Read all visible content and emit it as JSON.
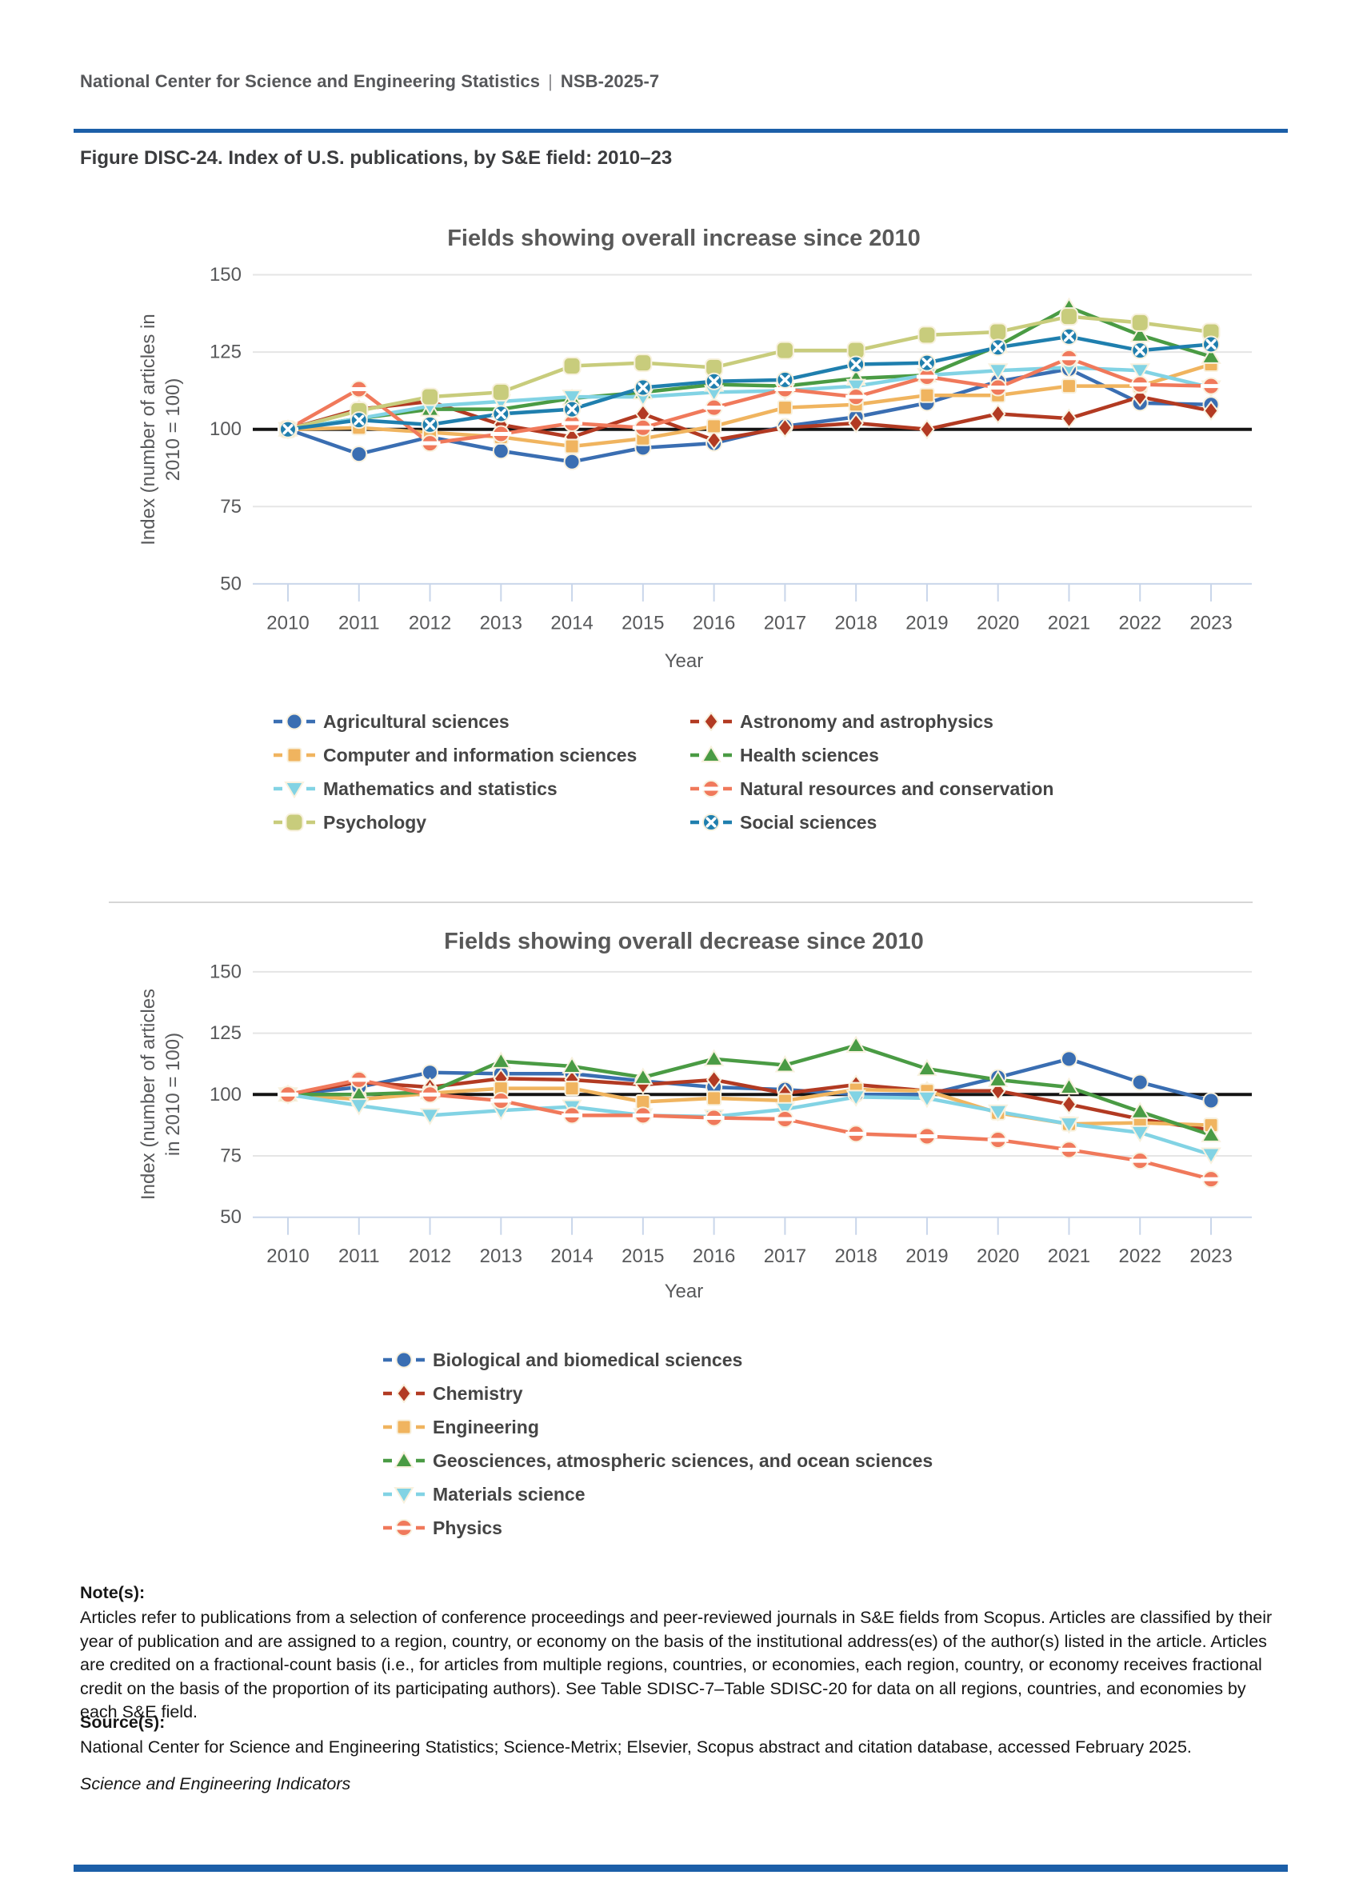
{
  "header": {
    "org": "National Center for Science and Engineering Statistics",
    "divider": "|",
    "report_id": "NSB-2025-7"
  },
  "figure_title": "Figure DISC-24. Index of U.S. publications, by S&E field: 2010–23",
  "colors": {
    "rule_blue": "#1C5FA8",
    "baseline_black": "#141414",
    "gridline_gray": "#E5E5E5",
    "axis_blue_gray": "#C9D6EA",
    "tick_text": "#58595B",
    "title_text": "#595959",
    "legend_text": "#454545"
  },
  "chart_data": [
    {
      "type": "line",
      "title": "Fields showing overall increase since 2010",
      "ylabel_line1": "Index (number of articles in",
      "ylabel_line2": "2010 = 100)",
      "xlabel": "Year",
      "x": [
        2010,
        2011,
        2012,
        2013,
        2014,
        2015,
        2016,
        2017,
        2018,
        2019,
        2020,
        2021,
        2022,
        2023
      ],
      "ylim": [
        50,
        150
      ],
      "yticks": [
        50,
        75,
        100,
        125,
        150
      ],
      "baseline": 100,
      "grid": true,
      "legend_position": "bottom",
      "series": [
        {
          "name": "Agricultural sciences",
          "marker": "circle",
          "color": "#3A6EB2",
          "values": [
            100,
            92,
            97.5,
            93,
            89.5,
            94,
            95.5,
            101,
            104,
            108.5,
            115.5,
            119.5,
            108.5,
            108
          ]
        },
        {
          "name": "Astronomy and astrophysics",
          "marker": "diamond",
          "color": "#B23A22",
          "values": [
            100,
            106.5,
            109,
            101.5,
            97.5,
            105,
            96.5,
            100.5,
            102,
            100,
            105,
            103.5,
            110.5,
            106
          ]
        },
        {
          "name": "Computer and information sciences",
          "marker": "square",
          "color": "#F0B45F",
          "values": [
            100,
            100.5,
            99,
            97.5,
            94.5,
            97,
            101,
            107,
            108,
            111,
            111,
            114,
            114,
            121
          ]
        },
        {
          "name": "Health sciences",
          "marker": "triangle-up",
          "color": "#4A9B44",
          "values": [
            100,
            103.5,
            106.5,
            106.5,
            110,
            112,
            114.5,
            114,
            116.5,
            117.5,
            127,
            139.5,
            130.5,
            123.5
          ]
        },
        {
          "name": "Mathematics and statistics",
          "marker": "triangle-down",
          "color": "#82D3E4",
          "values": [
            100,
            103.5,
            107.5,
            109,
            110.5,
            110.5,
            112,
            112.5,
            114,
            117.5,
            119,
            120,
            119,
            113.5
          ]
        },
        {
          "name": "Natural resources and conservation",
          "marker": "circle-hbar",
          "color": "#F0795B",
          "values": [
            100,
            113,
            95.5,
            98.5,
            102,
            100.5,
            107,
            113,
            110.5,
            117,
            113.5,
            123,
            114.5,
            114
          ]
        },
        {
          "name": "Psychology",
          "marker": "rounded-square",
          "color": "#C8CC7C",
          "values": [
            100,
            106,
            110.5,
            112,
            120.5,
            121.5,
            120,
            125.5,
            125.5,
            130.5,
            131.5,
            136.5,
            134.5,
            131.5
          ]
        },
        {
          "name": "Social sciences",
          "marker": "circle-x",
          "color": "#1F7FAE",
          "values": [
            100,
            103,
            101.5,
            105,
            106.5,
            113.5,
            115.5,
            116,
            121,
            121.5,
            126.5,
            130,
            125.5,
            127.5
          ]
        }
      ]
    },
    {
      "type": "line",
      "title": "Fields showing overall decrease since 2010",
      "ylabel_line1": "Index (number of articles",
      "ylabel_line2": "in 2010 = 100)",
      "xlabel": "Year",
      "x": [
        2010,
        2011,
        2012,
        2013,
        2014,
        2015,
        2016,
        2017,
        2018,
        2019,
        2020,
        2021,
        2022,
        2023
      ],
      "ylim": [
        50,
        150
      ],
      "yticks": [
        50,
        75,
        100,
        125,
        150
      ],
      "baseline": 100,
      "grid": true,
      "legend_position": "bottom",
      "series": [
        {
          "name": "Biological and biomedical sciences",
          "marker": "circle",
          "color": "#3A6EB2",
          "values": [
            100,
            103,
            109,
            108.5,
            108.5,
            105.5,
            103,
            102,
            100,
            100,
            107,
            114.5,
            105,
            97.5
          ]
        },
        {
          "name": "Chemistry",
          "marker": "diamond",
          "color": "#B23A22",
          "values": [
            100,
            105,
            103,
            106.5,
            106,
            104,
            106,
            100.5,
            104,
            101.5,
            101.5,
            96,
            90,
            85.5
          ]
        },
        {
          "name": "Engineering",
          "marker": "square",
          "color": "#F0B45F",
          "values": [
            100,
            98,
            100.5,
            102.5,
            102.5,
            97,
            98.5,
            97.5,
            102,
            101.5,
            92.5,
            88,
            88.5,
            87.5
          ]
        },
        {
          "name": "Geosciences, atmospheric sciences, and ocean sciences",
          "marker": "triangle-up",
          "color": "#4A9B44",
          "values": [
            100,
            100,
            101,
            113.5,
            111.5,
            107,
            114.5,
            112,
            120,
            110.5,
            106,
            103,
            93,
            83.5
          ]
        },
        {
          "name": "Materials science",
          "marker": "triangle-down",
          "color": "#82D3E4",
          "values": [
            100,
            95.5,
            91.5,
            93.5,
            95,
            91.5,
            91,
            94,
            99,
            98.5,
            93,
            88,
            84.5,
            75.5
          ]
        },
        {
          "name": "Physics",
          "marker": "circle-hbar",
          "color": "#F0795B",
          "values": [
            100,
            106,
            100,
            97.5,
            91.5,
            91.5,
            90.5,
            90,
            84,
            83,
            81.5,
            77.5,
            73,
            65.5
          ]
        }
      ]
    }
  ],
  "notes": {
    "heading": "Note(s):",
    "body": "Articles refer to publications from a selection of conference proceedings and peer-reviewed journals in S&E fields from Scopus. Articles are classified by their year of publication and are assigned to a region, country, or economy on the basis of the institutional address(es) of the author(s) listed in the article. Articles are credited on a fractional-count basis (i.e., for articles from multiple regions, countries, or economies, each region, country, or economy receives fractional credit on the basis of the proportion of its participating authors). See Table SDISC-7–Table SDISC-20 for data on all regions, countries, and economies by each S&E field.",
    "source_heading": "Source(s):",
    "source_body": "National Center for Science and Engineering Statistics; Science-Metrix; Elsevier, Scopus abstract and citation database, accessed February 2025.",
    "brand": "Science and Engineering Indicators"
  }
}
